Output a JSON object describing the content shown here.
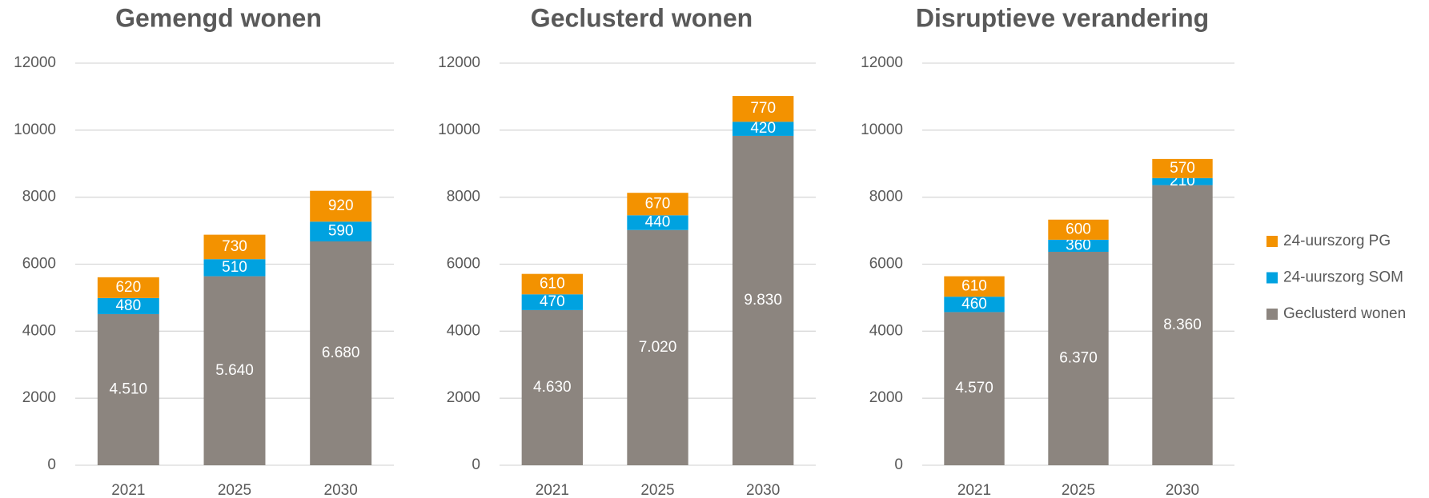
{
  "chart_data": [
    {
      "type": "bar",
      "stacked": true,
      "title": "Gemengd wonen",
      "categories": [
        "2021",
        "2025",
        "2030"
      ],
      "series": [
        {
          "color": "#8c857f",
          "values": [
            4510,
            5640,
            6680
          ],
          "value_labels": [
            "4.510",
            "5.640",
            "6.680"
          ]
        },
        {
          "color": "#00a2e0",
          "values": [
            480,
            510,
            590
          ]
        },
        {
          "color": "#f39200",
          "values": [
            620,
            730,
            920
          ]
        }
      ],
      "ylim": [
        0,
        12000
      ],
      "yticks": [
        0,
        2000,
        4000,
        6000,
        8000,
        10000,
        12000
      ],
      "grid": true
    },
    {
      "type": "bar",
      "stacked": true,
      "title": "Geclusterd wonen",
      "categories": [
        "2021",
        "2025",
        "2030"
      ],
      "series": [
        {
          "color": "#8c857f",
          "values": [
            4630,
            7020,
            9830
          ],
          "value_labels": [
            "4.630",
            "7.020",
            "9.830"
          ]
        },
        {
          "color": "#00a2e0",
          "values": [
            470,
            440,
            420
          ]
        },
        {
          "color": "#f39200",
          "values": [
            610,
            670,
            770
          ]
        }
      ],
      "ylim": [
        0,
        12000
      ],
      "yticks": [
        0,
        2000,
        4000,
        6000,
        8000,
        10000,
        12000
      ],
      "grid": true
    },
    {
      "type": "bar",
      "stacked": true,
      "title": "Disruptieve verandering",
      "categories": [
        "2021",
        "2025",
        "2030"
      ],
      "series": [
        {
          "name": "Geclusterd wonen",
          "color": "#8c857f",
          "values": [
            4570,
            6370,
            8360
          ],
          "value_labels": [
            "4.570",
            "6.370",
            "8.360"
          ]
        },
        {
          "name": "24-uurszorg SOM",
          "color": "#00a2e0",
          "values": [
            460,
            360,
            210
          ]
        },
        {
          "name": "24-uurszorg PG",
          "color": "#f39200",
          "values": [
            610,
            600,
            570
          ]
        }
      ],
      "ylim": [
        0,
        12000
      ],
      "yticks": [
        0,
        2000,
        4000,
        6000,
        8000,
        10000,
        12000
      ],
      "grid": true,
      "legend": "right"
    }
  ]
}
